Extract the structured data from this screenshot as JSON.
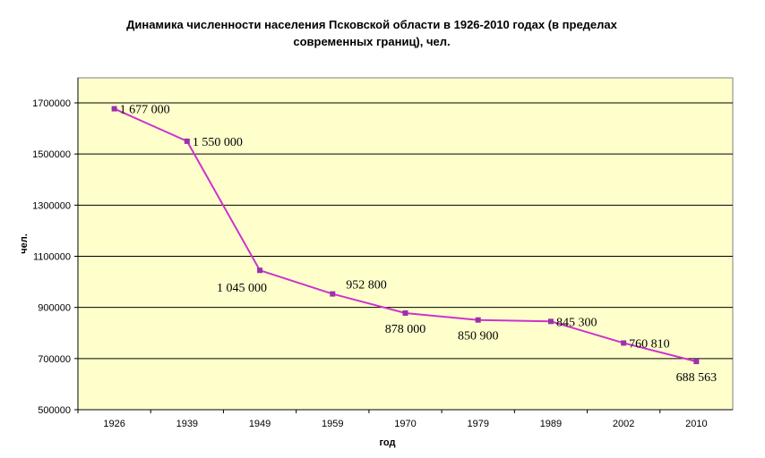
{
  "chart_data": {
    "type": "line",
    "title": "Динамика численности населения Псковской области в 1926-2010 годах (в пределах современных границ), чел.",
    "xlabel": "год",
    "ylabel": "чел.",
    "categories": [
      "1926",
      "1939",
      "1949",
      "1959",
      "1970",
      "1979",
      "1989",
      "2002",
      "2010"
    ],
    "values": [
      1677000,
      1550000,
      1045000,
      952800,
      878000,
      850900,
      845300,
      760810,
      688563
    ],
    "data_labels": [
      "1 677 000",
      "1 550 000",
      "1 045 000",
      "952 800",
      "878 000",
      "850 900",
      "845 300",
      "760 810",
      "688 563"
    ],
    "label_placement": [
      "right",
      "right",
      "below-left",
      "above-right",
      "below",
      "below",
      "right",
      "right",
      "below"
    ],
    "ylim": [
      500000,
      1700000
    ],
    "yticks": [
      500000,
      700000,
      900000,
      1100000,
      1300000,
      1500000,
      1700000
    ],
    "ytick_labels": [
      "500000",
      "700000",
      "900000",
      "1100000",
      "1300000",
      "1500000",
      "1700000"
    ],
    "grid": true,
    "colors": {
      "line": "#cc33cc",
      "marker": "#9933aa",
      "plot_bg": "#ffffcc",
      "grid": "#000000"
    }
  }
}
